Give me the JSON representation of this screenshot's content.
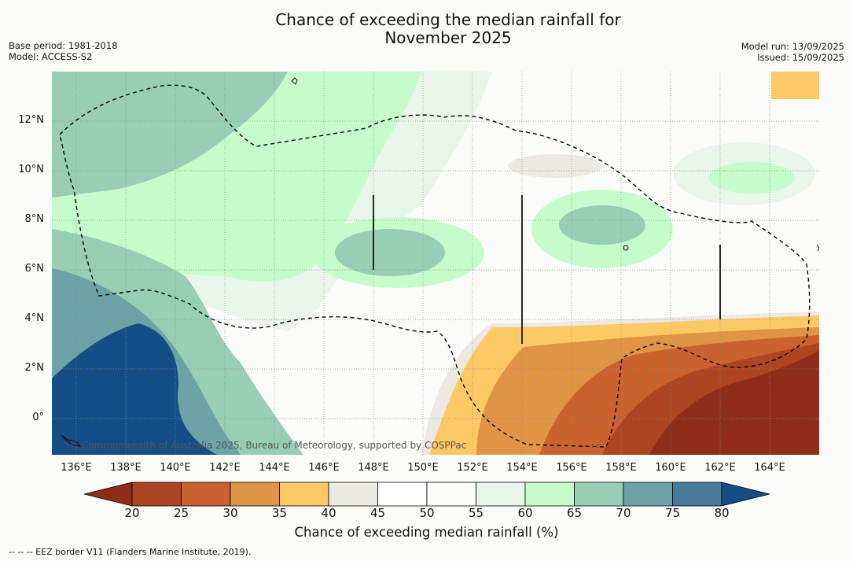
{
  "title": {
    "line1": "Chance of exceeding the median rainfall for",
    "line2": "November 2025"
  },
  "meta_left": {
    "base_period": "Base period: 1981-2018",
    "model": "Model: ACCESS-S2"
  },
  "meta_right": {
    "model_run": "Model run: 13/09/2025",
    "issued": "Issued: 15/09/2025"
  },
  "map": {
    "x_ticks": [
      "136°E",
      "138°E",
      "140°E",
      "142°E",
      "144°E",
      "146°E",
      "148°E",
      "150°E",
      "152°E",
      "154°E",
      "156°E",
      "158°E",
      "160°E",
      "162°E",
      "164°E"
    ],
    "y_ticks": [
      "12°N",
      "10°N",
      "8°N",
      "6°N",
      "4°N",
      "2°N",
      "0°"
    ],
    "credit": "© Commonwealth of Australia 2025, Bureau of Meteorology, supported by COSPPac"
  },
  "colorbar": {
    "ticks": [
      "20",
      "25",
      "30",
      "35",
      "40",
      "45",
      "50",
      "55",
      "60",
      "65",
      "70",
      "75",
      "80"
    ],
    "colors": [
      "#8e2e18",
      "#ad4422",
      "#c9622e",
      "#e09445",
      "#fec965",
      "#ece8e4",
      "#ffffff",
      "#fbfcfa",
      "#e8f5e8",
      "#c6fccb",
      "#98cdb6",
      "#6ba3a6",
      "#477a98",
      "#154e86"
    ],
    "label": "Chance of exceeding median rainfall (%)"
  },
  "footnote": "--  --  -- EEZ border V11 (Flanders Marine Institute, 2019)."
}
